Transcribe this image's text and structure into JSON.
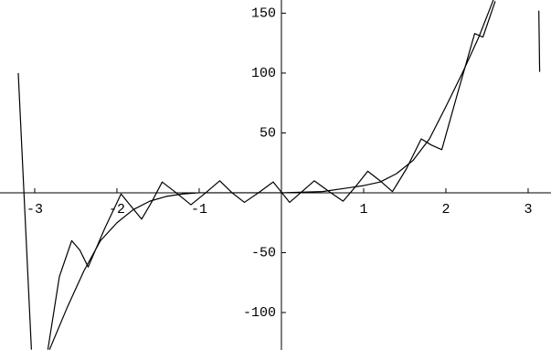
{
  "chart_data": {
    "type": "line",
    "xlim": [
      -3.422,
      3.278
    ],
    "ylim": [
      -131.3,
      161
    ],
    "xticks": [
      -3,
      -2,
      -1,
      1,
      2,
      3
    ],
    "yticks": [
      -100,
      -50,
      50,
      100,
      150
    ],
    "series": [
      {
        "color": "#000000",
        "x": [
          -3.2,
          -3.04,
          -2.95,
          -2.84,
          -2.7,
          -2.55,
          -2.45,
          -2.35,
          -2.15,
          -1.95,
          -1.82,
          -1.7,
          -1.58,
          -1.45,
          -1.28,
          -1.1,
          -0.92,
          -0.75,
          -0.6,
          -0.45,
          -0.28,
          -0.1,
          0.1,
          0.25,
          0.4,
          0.58,
          0.75,
          0.9,
          1.05,
          1.2,
          1.35,
          1.52,
          1.7,
          1.82,
          1.95,
          2.15,
          2.35,
          2.45,
          2.6,
          3.0,
          3.13,
          3.14
        ],
        "values": [
          100,
          -131,
          null,
          -131,
          -70,
          -40,
          -48,
          -62,
          -30,
          -1,
          -12,
          -22,
          -8,
          9,
          0,
          -10,
          0,
          10,
          0,
          -8,
          0,
          9,
          -8,
          1,
          10,
          1,
          -7,
          5,
          18,
          10,
          1,
          20,
          45,
          40,
          36,
          85,
          133,
          130,
          160,
          null,
          152,
          101
        ]
      },
      {
        "color": "#000000",
        "x": [
          -2.82,
          -2.6,
          -2.4,
          -2.2,
          -2.0,
          -1.8,
          -1.6,
          -1.4,
          -1.2,
          -1.0,
          -0.5,
          0,
          0.5,
          1.0,
          1.2,
          1.4,
          1.6,
          1.8,
          2.0,
          2.2,
          2.4,
          2.6,
          2.75
        ],
        "values": [
          -131,
          -95,
          -65,
          -40,
          -25,
          -14,
          -7,
          -3,
          -1,
          0,
          0,
          0,
          1,
          6,
          9,
          16,
          27,
          45,
          72,
          100,
          130,
          165,
          200
        ]
      }
    ]
  }
}
